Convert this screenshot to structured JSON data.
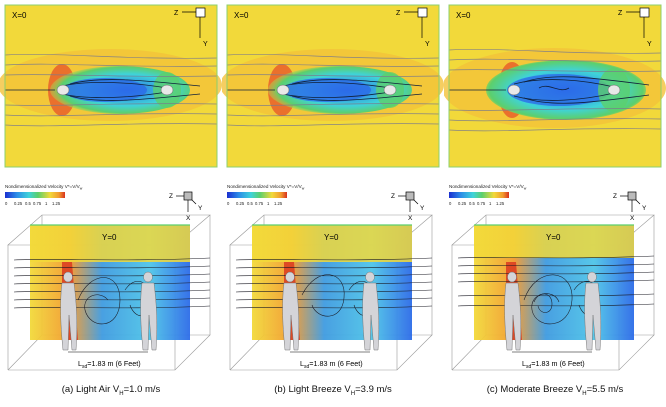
{
  "figure": {
    "cases": [
      {
        "top_label": "X=0",
        "colorbar_title_main": "Nondimensionalized Velocity V*=V/V",
        "colorbar_title_sub": "w",
        "colorbar_ticks": [
          "0",
          "0.25",
          "0.5",
          "0.75",
          "1",
          "1.25"
        ],
        "section_label": "Y=0",
        "distance_main": "L",
        "distance_sub": "sd",
        "distance_value": "=1.83 m (6 Feet)",
        "caption_pre": "(a) Light Air V",
        "caption_sub": "H",
        "caption_post": "=1.0 m/s"
      },
      {
        "top_label": "X=0",
        "colorbar_title_main": "Nondimensionalized Velocity V*=V/V",
        "colorbar_title_sub": "w",
        "colorbar_ticks": [
          "0",
          "0.25",
          "0.5",
          "0.75",
          "1",
          "1.25"
        ],
        "section_label": "Y=0",
        "distance_main": "L",
        "distance_sub": "sd",
        "distance_value": "=1.83 m (6 Feet)",
        "caption_pre": "(b) Light Breeze V",
        "caption_sub": "H",
        "caption_post": "=3.9 m/s"
      },
      {
        "top_label": "X=0",
        "colorbar_title_main": "Nondimensionalized Velocity V*=V/V",
        "colorbar_title_sub": "w",
        "colorbar_ticks": [
          "0",
          "0.25",
          "0.5",
          "0.75",
          "1",
          "1.25"
        ],
        "section_label": "Y=0",
        "distance_main": "L",
        "distance_sub": "sd",
        "distance_value": "=1.83 m (6 Feet)",
        "caption_pre": "(c) Moderate Breeze V",
        "caption_sub": "H",
        "caption_post": "=5.5 m/s"
      }
    ],
    "axes_top": {
      "z": "Z",
      "y": "Y"
    },
    "axes_bottom": {
      "z": "Z",
      "y": "Y",
      "x": "X"
    },
    "colors": {
      "yellow": "#f2d93a",
      "orange": "#f29a2e",
      "green": "#5ccf6c",
      "cyan": "#3fd3d9",
      "blue": "#2c6be8",
      "dark_blue": "#1b2fd0"
    }
  }
}
